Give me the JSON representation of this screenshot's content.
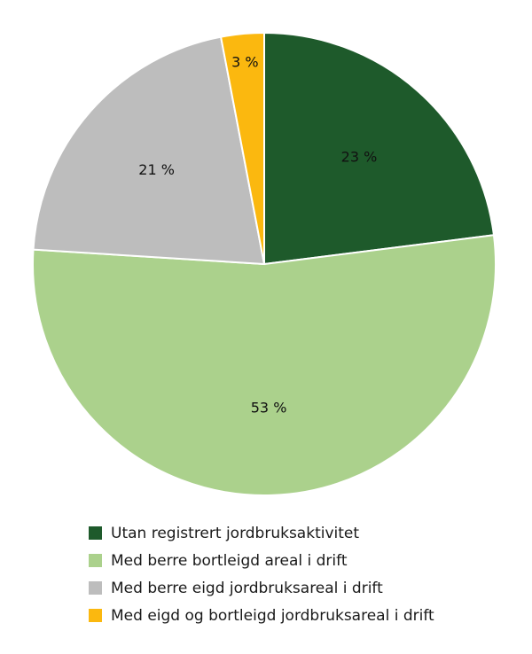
{
  "chart_data": {
    "type": "pie",
    "title": "",
    "categories": [
      "Utan registrert jordbruksaktivitet",
      "Med berre bortleigd areal i drift",
      "Med berre eigd jordbruksareal i drift",
      "Med eigd og bortleigd jordbruksareal i drift"
    ],
    "values": [
      23,
      53,
      21,
      3
    ],
    "labels": [
      "23 %",
      "53 %",
      "21 %",
      "3 %"
    ],
    "colors": [
      "#1e5a2b",
      "#abd18c",
      "#bdbdbd",
      "#fbb80f"
    ],
    "start_angle": "12 o'clock, clockwise",
    "legend_position": "bottom"
  },
  "legend": {
    "items": [
      {
        "label": "Utan registrert jordbruksaktivitet",
        "color": "#1e5a2b"
      },
      {
        "label": "Med berre bortleigd areal i drift",
        "color": "#abd18c"
      },
      {
        "label": "Med berre eigd jordbruksareal i drift",
        "color": "#bdbdbd"
      },
      {
        "label": "Med eigd og bortleigd jordbruksareal i drift",
        "color": "#fbb80f"
      }
    ]
  }
}
